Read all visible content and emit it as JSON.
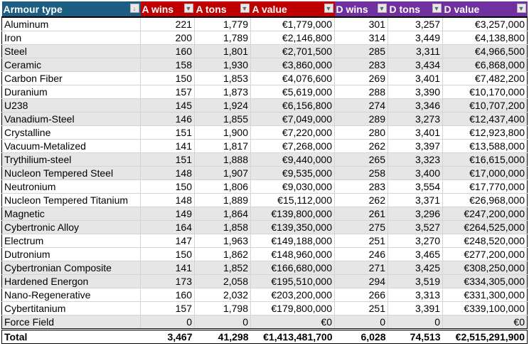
{
  "colors": {
    "blue": "#1b5e82",
    "red": "#c00000",
    "purple": "#7030a0"
  },
  "headers": [
    "Armour type",
    "A wins",
    "A tons",
    "A value",
    "D wins",
    "D tons",
    "D value"
  ],
  "rows": [
    [
      "Aluminum",
      "221",
      "1,779",
      "€1,779,000",
      "301",
      "3,257",
      "€3,257,000"
    ],
    [
      "Iron",
      "200",
      "1,789",
      "€2,146,800",
      "314",
      "3,449",
      "€4,138,800"
    ],
    [
      "Steel",
      "160",
      "1,801",
      "€2,701,500",
      "285",
      "3,311",
      "€4,966,500"
    ],
    [
      "Ceramic",
      "158",
      "1,930",
      "€3,860,000",
      "283",
      "3,434",
      "€6,868,000"
    ],
    [
      "Carbon Fiber",
      "150",
      "1,853",
      "€4,076,600",
      "269",
      "3,401",
      "€7,482,200"
    ],
    [
      "Duranium",
      "157",
      "1,873",
      "€5,619,000",
      "288",
      "3,390",
      "€10,170,000"
    ],
    [
      "U238",
      "145",
      "1,924",
      "€6,156,800",
      "274",
      "3,346",
      "€10,707,200"
    ],
    [
      "Vanadium-Steel",
      "146",
      "1,855",
      "€7,049,000",
      "289",
      "3,273",
      "€12,437,400"
    ],
    [
      "Crystalline",
      "151",
      "1,900",
      "€7,220,000",
      "280",
      "3,401",
      "€12,923,800"
    ],
    [
      "Vacuum-Metalized",
      "141",
      "1,817",
      "€7,268,000",
      "262",
      "3,397",
      "€13,588,000"
    ],
    [
      "Trythilium-steel",
      "151",
      "1,888",
      "€9,440,000",
      "265",
      "3,323",
      "€16,615,000"
    ],
    [
      "Nucleon Tempered Steel",
      "148",
      "1,907",
      "€9,535,000",
      "258",
      "3,400",
      "€17,000,000"
    ],
    [
      "Neutronium",
      "150",
      "1,806",
      "€9,030,000",
      "283",
      "3,554",
      "€17,770,000"
    ],
    [
      "Nucleon Tempered Titanium",
      "148",
      "1,889",
      "€15,112,000",
      "262",
      "3,371",
      "€26,968,000"
    ],
    [
      "Magnetic",
      "149",
      "1,864",
      "€139,800,000",
      "261",
      "3,296",
      "€247,200,000"
    ],
    [
      "Cybertronic Alloy",
      "164",
      "1,858",
      "€139,350,000",
      "275",
      "3,527",
      "€264,525,000"
    ],
    [
      "Electrum",
      "147",
      "1,963",
      "€149,188,000",
      "251",
      "3,270",
      "€248,520,000"
    ],
    [
      "Dutronium",
      "150",
      "1,862",
      "€148,960,000",
      "246",
      "3,465",
      "€277,200,000"
    ],
    [
      "Cybertronian Composite",
      "141",
      "1,852",
      "€166,680,000",
      "271",
      "3,425",
      "€308,250,000"
    ],
    [
      "Hardened Energon",
      "173",
      "2,058",
      "€195,510,000",
      "294",
      "3,519",
      "€334,305,000"
    ],
    [
      "Nano-Regenerative",
      "160",
      "2,032",
      "€203,200,000",
      "266",
      "3,313",
      "€331,300,000"
    ],
    [
      "Cybertitanium",
      "157",
      "1,798",
      "€179,800,000",
      "251",
      "3,391",
      "€339,100,000"
    ],
    [
      "Force Field",
      "0",
      "0",
      "€0",
      "0",
      "0",
      "€0"
    ]
  ],
  "total": [
    "Total",
    "3,467",
    "41,298",
    "€1,413,481,700",
    "6,028",
    "74,513",
    "€2,515,291,900"
  ]
}
